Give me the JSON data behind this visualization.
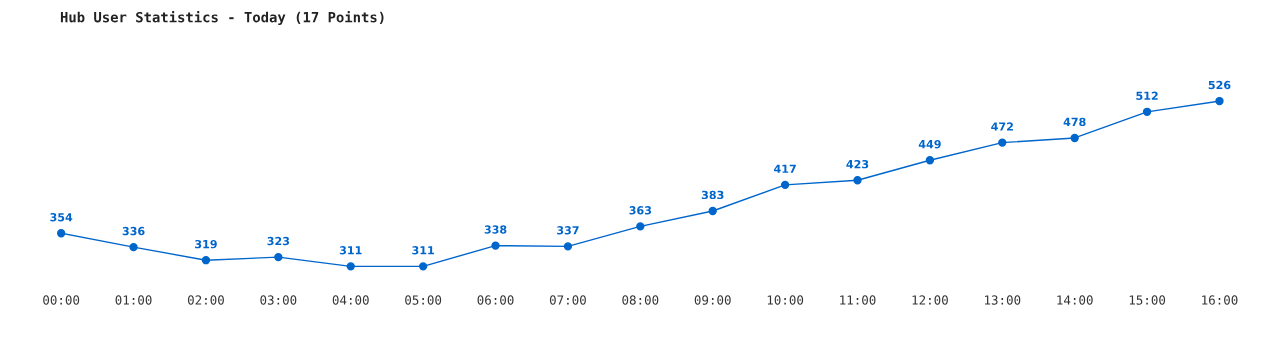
{
  "chart_data": {
    "type": "line",
    "title": "Hub User Statistics - Today (17 Points)",
    "categories": [
      "00:00",
      "01:00",
      "02:00",
      "03:00",
      "04:00",
      "05:00",
      "06:00",
      "07:00",
      "08:00",
      "09:00",
      "10:00",
      "11:00",
      "12:00",
      "13:00",
      "14:00",
      "15:00",
      "16:00"
    ],
    "series": [
      {
        "color": "#0066cc",
        "values": [
          354,
          336,
          319,
          323,
          311,
          311,
          338,
          337,
          363,
          383,
          417,
          423,
          449,
          472,
          478,
          512,
          526
        ]
      }
    ],
    "data_labels": true,
    "marker": "circle",
    "line_style": "solid",
    "grid": false,
    "legend": false,
    "tick_labels": "x"
  }
}
